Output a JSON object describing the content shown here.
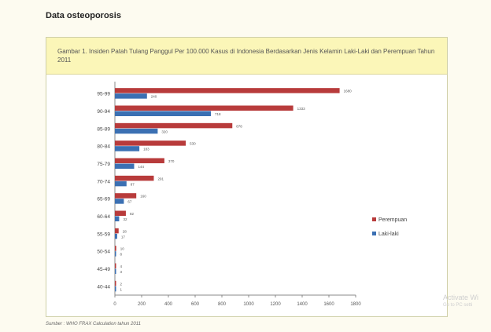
{
  "page": {
    "section_title": "Data osteoporosis",
    "caption": "Gambar 1. Insiden Patah Tulang Panggul Per 100.000 Kasus di Indonesia Berdasarkan Jenis Kelamin Laki-Laki dan Perempuan Tahun 2011",
    "source": "Sumber : WHO FRAX Calculation tahun 2011",
    "watermark_title": "Activate Wi",
    "watermark_sub": "Go to PC setti"
  },
  "chart_data": {
    "type": "bar",
    "orientation": "horizontal",
    "categories": [
      "95-99",
      "90-94",
      "85-89",
      "80-84",
      "75-79",
      "70-74",
      "65-69",
      "60-64",
      "55-59",
      "50-54",
      "45-49",
      "40-44"
    ],
    "series": [
      {
        "name": "Perempuan",
        "color": "#b83b3b",
        "values": [
          1680,
          1333,
          878,
          530,
          370,
          291,
          160,
          82,
          28,
          10,
          4,
          2
        ],
        "labels": [
          "1680",
          "1333",
          "878",
          "530",
          "370",
          "291",
          "160",
          "82",
          "28",
          "10",
          "4",
          "2"
        ]
      },
      {
        "name": "Laki-laki",
        "color": "#3b70b3",
        "values": [
          240,
          718,
          320,
          183,
          144,
          87,
          67,
          32,
          17,
          8,
          3,
          1
        ],
        "labels": [
          "240",
          "718",
          "320",
          "183",
          "144",
          "87",
          "67",
          "32",
          "17",
          "8",
          "3",
          "1"
        ]
      }
    ],
    "xlim": [
      0,
      1800
    ],
    "xticks": [
      "0",
      "200",
      "400",
      "600",
      "800",
      "1000",
      "1200",
      "1400",
      "1600",
      "1800"
    ],
    "legend_position": "right",
    "grid": false
  }
}
